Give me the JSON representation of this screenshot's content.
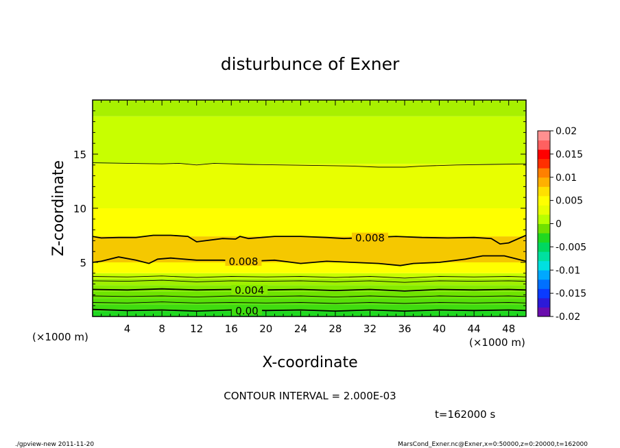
{
  "chart_data": {
    "type": "heatmap",
    "title": "disturbunce of Exner",
    "xlabel": "X-coordinate",
    "ylabel": "Z-coordinate",
    "x_unit": "(×1000 m)",
    "y_unit": "(×1000 m)",
    "xlim": [
      0,
      50
    ],
    "ylim": [
      0,
      20
    ],
    "x_ticks": [
      4,
      8,
      12,
      16,
      20,
      24,
      28,
      32,
      36,
      40,
      44,
      48
    ],
    "y_ticks": [
      5,
      10,
      15
    ],
    "colorbar": {
      "range": [
        -0.02,
        0.02
      ],
      "tick_labels": [
        "0.02",
        "0.015",
        "0.01",
        "0.005",
        "0",
        "-0.005",
        "-0.01",
        "-0.015",
        "-0.02"
      ],
      "tick_values": [
        0.02,
        0.015,
        0.01,
        0.005,
        0,
        -0.005,
        -0.01,
        -0.015,
        -0.02
      ],
      "colors": [
        "#6a0dad",
        "#2c1ad8",
        "#0a3bff",
        "#0070ff",
        "#00a8ff",
        "#00e0e0",
        "#00e0a0",
        "#00d860",
        "#20d820",
        "#70e000",
        "#b8ff00",
        "#e8ff00",
        "#ffff00",
        "#ffe000",
        "#ffb000",
        "#ff8000",
        "#ff3000",
        "#ff0000",
        "#ff6060",
        "#ff9090"
      ]
    },
    "color_bands": [
      {
        "z": [
          0.0,
          0.5
        ],
        "color": "#20d820"
      },
      {
        "z": [
          0.5,
          1.1
        ],
        "color": "#40dc10"
      },
      {
        "z": [
          1.1,
          1.7
        ],
        "color": "#58e008"
      },
      {
        "z": [
          1.7,
          2.3
        ],
        "color": "#6ee400"
      },
      {
        "z": [
          2.3,
          2.9
        ],
        "color": "#86ea00"
      },
      {
        "z": [
          2.9,
          3.5
        ],
        "color": "#a0f000"
      },
      {
        "z": [
          3.5,
          4.0
        ],
        "color": "#c8ff00"
      },
      {
        "z": [
          4.0,
          5.0
        ],
        "color": "#ffff00"
      },
      {
        "z": [
          5.0,
          7.4
        ],
        "color": "#f5c800"
      },
      {
        "z": [
          7.4,
          10.0
        ],
        "color": "#ffff00"
      },
      {
        "z": [
          10.0,
          14.1
        ],
        "color": "#e8ff00"
      },
      {
        "z": [
          14.1,
          18.5
        ],
        "color": "#c8ff00"
      },
      {
        "z": [
          18.5,
          20.0
        ],
        "color": "#a8f000"
      }
    ],
    "contours": [
      {
        "level": 0.0,
        "label": "0.00",
        "thick": true,
        "label_x": 17.8,
        "points": [
          [
            0,
            0.65
          ],
          [
            4,
            0.55
          ],
          [
            8,
            0.6
          ],
          [
            12,
            0.5
          ],
          [
            16,
            0.6
          ],
          [
            20,
            0.55
          ],
          [
            24,
            0.6
          ],
          [
            28,
            0.5
          ],
          [
            32,
            0.6
          ],
          [
            36,
            0.5
          ],
          [
            40,
            0.6
          ],
          [
            44,
            0.55
          ],
          [
            48,
            0.6
          ],
          [
            50,
            0.55
          ]
        ]
      },
      {
        "level": 0.001,
        "label": "",
        "thick": false,
        "label_x": null,
        "points": [
          [
            0,
            1.3
          ],
          [
            4,
            1.25
          ],
          [
            8,
            1.35
          ],
          [
            12,
            1.25
          ],
          [
            16,
            1.3
          ],
          [
            20,
            1.25
          ],
          [
            24,
            1.3
          ],
          [
            28,
            1.2
          ],
          [
            32,
            1.3
          ],
          [
            36,
            1.2
          ],
          [
            40,
            1.3
          ],
          [
            44,
            1.25
          ],
          [
            48,
            1.3
          ],
          [
            50,
            1.25
          ]
        ]
      },
      {
        "level": 0.002,
        "label": "",
        "thick": false,
        "label_x": null,
        "points": [
          [
            0,
            1.9
          ],
          [
            4,
            1.85
          ],
          [
            8,
            1.9
          ],
          [
            12,
            1.8
          ],
          [
            16,
            1.9
          ],
          [
            20,
            1.85
          ],
          [
            24,
            1.9
          ],
          [
            28,
            1.8
          ],
          [
            32,
            1.9
          ],
          [
            36,
            1.8
          ],
          [
            40,
            1.9
          ],
          [
            44,
            1.85
          ],
          [
            48,
            1.9
          ],
          [
            50,
            1.85
          ]
        ]
      },
      {
        "level": 0.004,
        "label": "0.004",
        "thick": true,
        "label_x": 18.1,
        "points": [
          [
            0,
            2.5
          ],
          [
            4,
            2.45
          ],
          [
            8,
            2.55
          ],
          [
            12,
            2.45
          ],
          [
            16,
            2.5
          ],
          [
            20,
            2.45
          ],
          [
            24,
            2.5
          ],
          [
            28,
            2.4
          ],
          [
            32,
            2.5
          ],
          [
            36,
            2.35
          ],
          [
            40,
            2.5
          ],
          [
            44,
            2.45
          ],
          [
            48,
            2.5
          ],
          [
            50,
            2.45
          ]
        ]
      },
      {
        "level": 0.005,
        "label": "",
        "thick": false,
        "label_x": null,
        "points": [
          [
            0,
            3.3
          ],
          [
            4,
            3.25
          ],
          [
            8,
            3.35
          ],
          [
            12,
            3.2
          ],
          [
            16,
            3.3
          ],
          [
            20,
            3.25
          ],
          [
            24,
            3.3
          ],
          [
            28,
            3.2
          ],
          [
            32,
            3.3
          ],
          [
            36,
            3.15
          ],
          [
            40,
            3.3
          ],
          [
            44,
            3.25
          ],
          [
            48,
            3.3
          ],
          [
            50,
            3.25
          ]
        ]
      },
      {
        "level": 0.006,
        "label": "",
        "thick": false,
        "label_x": null,
        "points": [
          [
            0,
            3.7
          ],
          [
            4,
            3.65
          ],
          [
            8,
            3.75
          ],
          [
            12,
            3.6
          ],
          [
            16,
            3.7
          ],
          [
            20,
            3.65
          ],
          [
            24,
            3.7
          ],
          [
            28,
            3.6
          ],
          [
            32,
            3.7
          ],
          [
            36,
            3.55
          ],
          [
            40,
            3.7
          ],
          [
            44,
            3.65
          ],
          [
            48,
            3.7
          ],
          [
            50,
            3.65
          ]
        ]
      },
      {
        "level": 0.008,
        "label": "0.008",
        "thick": true,
        "label_x": 17.4,
        "points": [
          [
            0,
            5.0
          ],
          [
            1,
            5.1
          ],
          [
            3,
            5.5
          ],
          [
            5,
            5.2
          ],
          [
            6.5,
            4.9
          ],
          [
            7.5,
            5.3
          ],
          [
            9,
            5.4
          ],
          [
            12,
            5.2
          ],
          [
            15,
            5.2
          ],
          [
            18,
            5.1
          ],
          [
            21,
            5.2
          ],
          [
            24,
            4.9
          ],
          [
            27,
            5.1
          ],
          [
            30,
            5.0
          ],
          [
            33,
            4.9
          ],
          [
            35.5,
            4.7
          ],
          [
            37,
            4.9
          ],
          [
            40,
            5.0
          ],
          [
            43,
            5.3
          ],
          [
            45,
            5.6
          ],
          [
            47.5,
            5.6
          ],
          [
            49,
            5.3
          ],
          [
            50,
            5.1
          ]
        ]
      },
      {
        "level": 0.008,
        "label": "0.008",
        "thick": true,
        "label_x": 32.0,
        "points": [
          [
            0,
            7.4
          ],
          [
            1,
            7.25
          ],
          [
            3,
            7.3
          ],
          [
            5,
            7.3
          ],
          [
            7,
            7.5
          ],
          [
            9,
            7.5
          ],
          [
            11,
            7.4
          ],
          [
            12,
            6.9
          ],
          [
            13,
            7.0
          ],
          [
            15,
            7.2
          ],
          [
            16.5,
            7.15
          ],
          [
            17,
            7.4
          ],
          [
            18,
            7.2
          ],
          [
            21,
            7.4
          ],
          [
            24,
            7.4
          ],
          [
            27,
            7.3
          ],
          [
            29,
            7.2
          ],
          [
            32,
            7.3
          ],
          [
            35,
            7.4
          ],
          [
            38,
            7.3
          ],
          [
            41,
            7.25
          ],
          [
            44,
            7.3
          ],
          [
            46,
            7.2
          ],
          [
            47,
            6.7
          ],
          [
            48,
            6.8
          ],
          [
            50,
            7.5
          ]
        ]
      },
      {
        "level": 0.01,
        "label": "",
        "thick": false,
        "label_x": null,
        "points": [
          [
            0,
            14.2
          ],
          [
            4,
            14.15
          ],
          [
            8,
            14.1
          ],
          [
            10,
            14.15
          ],
          [
            12,
            14.0
          ],
          [
            14,
            14.15
          ],
          [
            16,
            14.1
          ],
          [
            18,
            14.05
          ],
          [
            22,
            14.0
          ],
          [
            26,
            13.95
          ],
          [
            30,
            13.9
          ],
          [
            33,
            13.8
          ],
          [
            36,
            13.8
          ],
          [
            38,
            13.9
          ],
          [
            42,
            14.0
          ],
          [
            46,
            14.05
          ],
          [
            50,
            14.1
          ]
        ]
      }
    ],
    "annotations": [
      "CONTOUR INTERVAL = 2.000E-03",
      "t=162000 s"
    ]
  },
  "footer": {
    "left": "./gpview-new   2011-11-20",
    "right": "MarsCond_Exner.nc@Exner,x=0:50000,z=0:20000,t=162000"
  }
}
